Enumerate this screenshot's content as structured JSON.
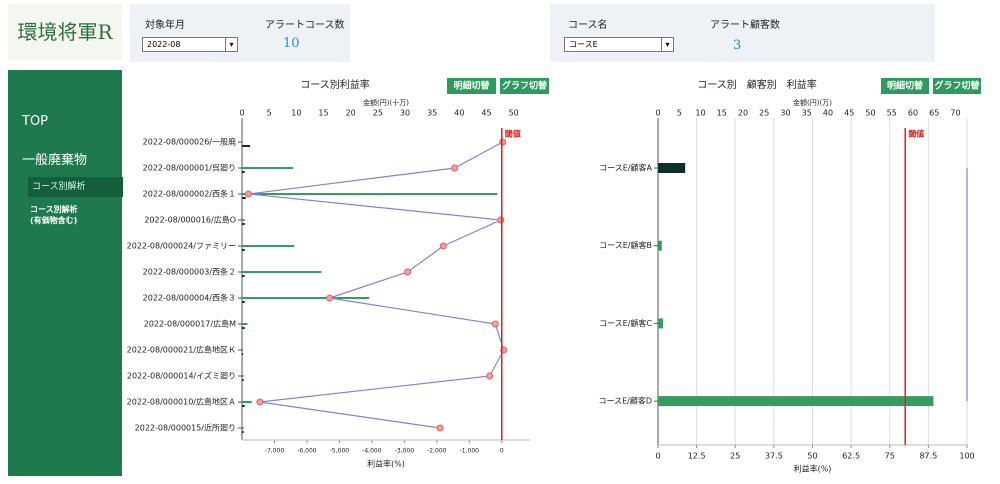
{
  "logo": "環境将軍R",
  "filters": {
    "month_label": "対象年月",
    "month_value": "2022-08",
    "course_count_label": "アラートコース数",
    "course_count": "10",
    "course_label": "コース名",
    "course_value": "コースE",
    "customer_count_label": "アラート顧客数",
    "customer_count": "3"
  },
  "sidebar": {
    "top": "TOP",
    "section": "一般廃棄物",
    "items": [
      "コース別解析",
      "コース別解析\n(有価物含む)"
    ]
  },
  "charts": [
    {
      "type": "bar-line",
      "title": "コース別利益率",
      "buttons": [
        "明細切替",
        "グラフ切替"
      ],
      "top_axis": {
        "label": "金額(円)(十万)",
        "xlim": [
          0,
          53
        ],
        "xticks": [
          0,
          5,
          10,
          15,
          20,
          25,
          30,
          35,
          40,
          45,
          50
        ]
      },
      "bottom_axis": {
        "label": "利益率(%)",
        "xlim": [
          -8000,
          870
        ],
        "xticks": [
          {
            "value": -7000,
            "label": "-7,000"
          },
          {
            "value": -6000,
            "label": "-6,000"
          },
          {
            "value": -5000,
            "label": "-5,000"
          },
          {
            "value": -4000,
            "label": "-4,000"
          },
          {
            "value": -3000,
            "label": "-3,000"
          },
          {
            "value": -2000,
            "label": "-2,000"
          },
          {
            "value": -1000,
            "label": "-1,000"
          },
          0
        ]
      },
      "grid": false,
      "threshold": {
        "label": "閾値",
        "value": 0
      },
      "categories": [
        "2022-08/000026/一般廃",
        "2022-08/000001/呉廻り",
        "2022-08/000002/西条１",
        "2022-08/000016/広島O",
        "2022-08/000024/ファミリー",
        "2022-08/000003/西条２",
        "2022-08/000004/西条３",
        "2022-08/000017/広島M",
        "2022-08/000021/広島地区Ｋ",
        "2022-08/000014/イズミ廻り",
        "2022-08/000010/広島地区Ａ",
        "2022-08/000015/近所廻り"
      ],
      "series": [
        {
          "kind": "bar",
          "color": "#3a9a64",
          "values": [
            0,
            9.4,
            47,
            0.5,
            9.6,
            14.6,
            23.4,
            1,
            0.2,
            0.3,
            1.8,
            0.3
          ]
        },
        {
          "kind": "bar",
          "color": "#0e2e2a",
          "values": [
            1.5,
            0.5,
            0.7,
            0.5,
            0.5,
            0.5,
            0.5,
            0.5,
            0.2,
            0.3,
            0.5,
            0.3
          ]
        },
        {
          "kind": "line",
          "color": "#8a80d0",
          "values": [
            30,
            -1450,
            -7800,
            -30,
            -1800,
            -2900,
            -5300,
            -200,
            60,
            -370,
            -7450,
            -1900
          ]
        }
      ]
    },
    {
      "type": "bar-line",
      "title": "コース別　顧客別　利益率",
      "buttons": [
        "明細切替",
        "グラフ切替"
      ],
      "top_axis": {
        "label": "金額(円)(万)",
        "xlim": [
          0,
          72.7
        ],
        "xticks": [
          0,
          5,
          10,
          15,
          20,
          25,
          30,
          35,
          40,
          45,
          50,
          55,
          60,
          65,
          70
        ]
      },
      "bottom_axis": {
        "label": "利益率(%)",
        "xlim": [
          0,
          100
        ],
        "xticks": [
          0,
          12.5,
          25,
          37.5,
          50,
          62.5,
          75,
          87.5,
          100
        ]
      },
      "grid": true,
      "threshold": {
        "label": "閾値",
        "value": 80
      },
      "categories": [
        "コースE/顧客A",
        "コースE/顧客B",
        "コースE/顧客C",
        "コースE/顧客D"
      ],
      "series": [
        {
          "kind": "bar",
          "color": "#0e2e2a",
          "values": [
            6.4,
            0,
            0,
            0
          ]
        },
        {
          "kind": "bar",
          "color": "#3a9a64",
          "values": [
            0,
            0.9,
            1.2,
            64.8
          ]
        },
        {
          "kind": "line",
          "color": "#8a80d0",
          "values": [
            100,
            100,
            100,
            100
          ]
        }
      ]
    }
  ]
}
